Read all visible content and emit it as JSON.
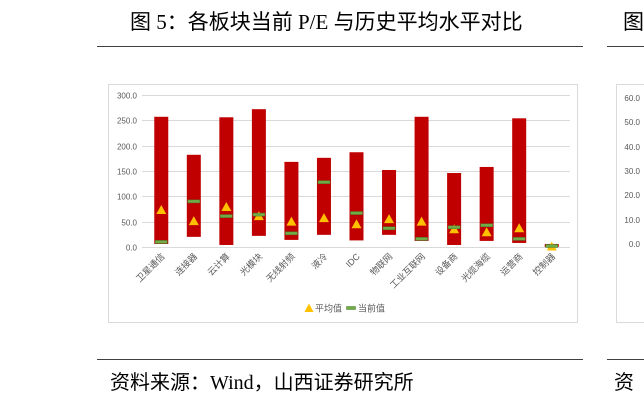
{
  "figure": {
    "title": "图 5：各板块当前 P/E 与历史平均水平对比",
    "source": "资料来源：Wind，山西证券研究所"
  },
  "chart_data": {
    "type": "bar",
    "bar_style": "floating-range",
    "categories": [
      "卫星通信",
      "连接器",
      "云计算",
      "光模块",
      "无线射频",
      "液冷",
      "IDC",
      "物联网",
      "工业互联网",
      "设备商",
      "光缆海缆",
      "运营商",
      "控制器"
    ],
    "range": {
      "low": [
        6,
        20,
        4,
        22,
        14,
        24,
        13,
        24,
        12,
        4,
        12,
        8,
        0
      ],
      "high": [
        257,
        182,
        256,
        272,
        168,
        176,
        187,
        152,
        257,
        146,
        158,
        254,
        6
      ]
    },
    "series": [
      {
        "name": "平均值",
        "marker": "triangle",
        "values": [
          73,
          51,
          79,
          61,
          50,
          57,
          45,
          55,
          50,
          35,
          29,
          37,
          1
        ]
      },
      {
        "name": "当前值",
        "marker": "dash",
        "values": [
          10,
          90,
          61,
          64,
          27,
          128,
          67,
          37,
          16,
          39,
          43,
          16,
          2
        ]
      }
    ],
    "ylim": [
      0,
      300
    ],
    "y_ticks": [
      "0.0",
      "50.0",
      "100.0",
      "150.0",
      "200.0",
      "250.0",
      "300.0"
    ],
    "grid": true,
    "legend_position": "bottom",
    "colors": {
      "range": "#C00000",
      "average": "#FFC000",
      "current": "#70AD47",
      "current_edge": "#4E7A2E"
    }
  },
  "next_figure": {
    "title_start": "图",
    "y_tick_labels": [
      "60.0",
      "50.0",
      "40.0",
      "30.0",
      "20.0",
      "10.0",
      "0.0"
    ],
    "source_start": "资"
  }
}
